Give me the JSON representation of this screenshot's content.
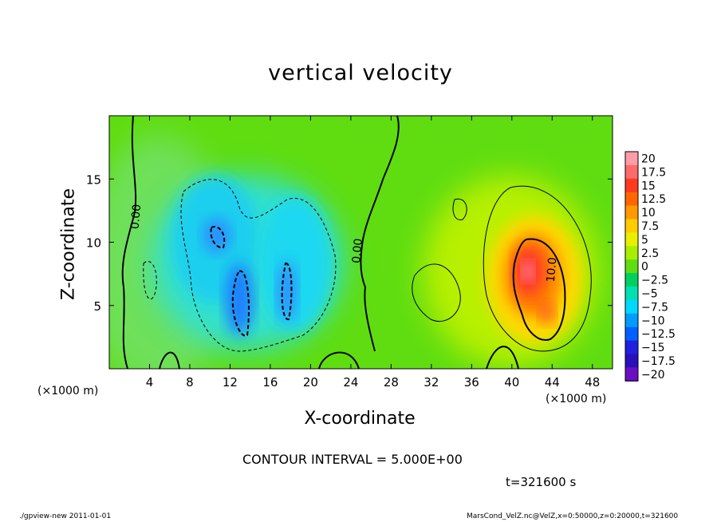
{
  "figure": {
    "title": "vertical velocity",
    "contour_interval": "CONTOUR INTERVAL = 5.000E+00",
    "time_label": "t=321600 s",
    "footer_left": "./gpview-new  2011-01-01",
    "footer_right": "MarsCond_VelZ.nc@VelZ,x=0:50000,z=0:20000,t=321600"
  },
  "chart_data": {
    "type": "heatmap",
    "title": "vertical velocity",
    "xlabel": "X-coordinate",
    "ylabel": "Z-coordinate",
    "x_unit": "(×1000 m)",
    "y_unit": "(×1000 m)",
    "xlim": [
      0,
      50
    ],
    "ylim": [
      0,
      20
    ],
    "x_ticks": [
      4,
      8,
      12,
      16,
      20,
      24,
      28,
      32,
      36,
      40,
      44,
      48
    ],
    "y_ticks": [
      5,
      10,
      15
    ],
    "contour_interval": 5.0,
    "contour_labels": [
      {
        "text": "0.00",
        "x": 3,
        "z": 12
      },
      {
        "text": "0.00",
        "x": 25,
        "z": 9.3
      },
      {
        "text": "10.0",
        "x": 44.3,
        "z": 7.8
      }
    ],
    "colorbar": {
      "levels": [
        "20",
        "17.5",
        "15",
        "12.5",
        "10",
        "7.5",
        "5",
        "2.5",
        "0",
        "−2.5",
        "−5",
        "−7.5",
        "−10",
        "−12.5",
        "−15",
        "−17.5",
        "−20"
      ],
      "colors": [
        "#ff9ca8",
        "#ff6a6a",
        "#ff3a1e",
        "#ff6600",
        "#ff9900",
        "#ffcc00",
        "#e8f000",
        "#a8ee00",
        "#5fdd10",
        "#00d060",
        "#00e0b0",
        "#00d8ff",
        "#009cff",
        "#0060ff",
        "#2020e0",
        "#2a10b8",
        "#6a10c0"
      ]
    },
    "features": [
      {
        "kind": "downdraft",
        "x": 11.5,
        "z": 10.5,
        "value": -10
      },
      {
        "kind": "downdraft",
        "x": 13.5,
        "z": 6,
        "value": -12
      },
      {
        "kind": "downdraft",
        "x": 17.5,
        "z": 6.5,
        "value": -10
      },
      {
        "kind": "updraft",
        "x": 42,
        "z": 7.5,
        "value": 15
      },
      {
        "kind": "updraft",
        "x": 43.5,
        "z": 4.5,
        "value": 12
      }
    ]
  }
}
